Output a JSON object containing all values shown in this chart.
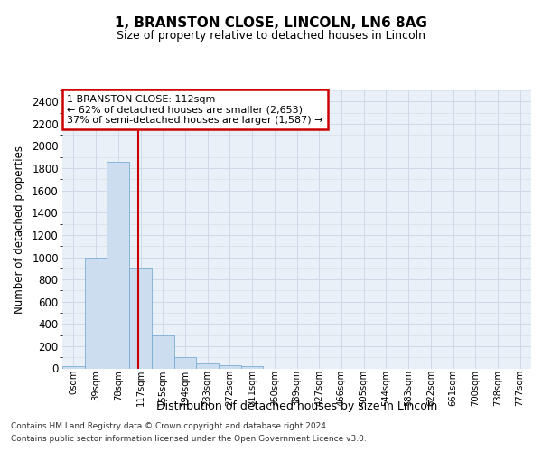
{
  "title": "1, BRANSTON CLOSE, LINCOLN, LN6 8AG",
  "subtitle": "Size of property relative to detached houses in Lincoln",
  "xlabel": "Distribution of detached houses by size in Lincoln",
  "ylabel": "Number of detached properties",
  "categories": [
    "0sqm",
    "39sqm",
    "78sqm",
    "117sqm",
    "155sqm",
    "194sqm",
    "233sqm",
    "272sqm",
    "311sqm",
    "350sqm",
    "389sqm",
    "427sqm",
    "466sqm",
    "505sqm",
    "544sqm",
    "583sqm",
    "622sqm",
    "661sqm",
    "700sqm",
    "738sqm",
    "777sqm"
  ],
  "values": [
    20,
    1000,
    1860,
    900,
    300,
    100,
    45,
    30,
    20,
    0,
    0,
    0,
    0,
    0,
    0,
    0,
    0,
    0,
    0,
    0,
    0
  ],
  "ylim": [
    0,
    2500
  ],
  "yticks": [
    0,
    200,
    400,
    600,
    800,
    1000,
    1200,
    1400,
    1600,
    1800,
    2000,
    2200,
    2400
  ],
  "bar_color": "#ccddf0",
  "bar_edge_color": "#7aadd4",
  "grid_color": "#d0d9e8",
  "bg_color": "#eaf0f8",
  "annotation_text": "1 BRANSTON CLOSE: 112sqm\n← 62% of detached houses are smaller (2,653)\n37% of semi-detached houses are larger (1,587) →",
  "annotation_box_color": "#ffffff",
  "annotation_box_edge": "#cc0000",
  "property_line_color": "#cc0000",
  "property_line_x": 2.88,
  "footer_line1": "Contains HM Land Registry data © Crown copyright and database right 2024.",
  "footer_line2": "Contains public sector information licensed under the Open Government Licence v3.0."
}
